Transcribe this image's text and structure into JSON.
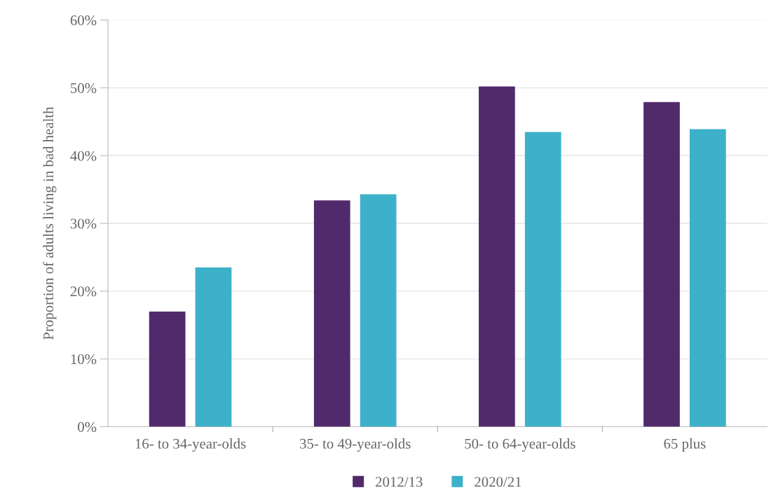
{
  "chart_data": {
    "type": "bar",
    "ylabel": "Proportion of adults living in bad health",
    "categories": [
      "16- to 34-year-olds",
      "35- to 49-year-olds",
      "50- to 64-year-olds",
      "65 plus"
    ],
    "series": [
      {
        "name": "2012/13",
        "color": "#512a6b",
        "values": [
          17.0,
          33.4,
          50.2,
          47.9
        ]
      },
      {
        "name": "2020/21",
        "color": "#3db1c9",
        "values": [
          23.5,
          34.3,
          43.5,
          43.9
        ]
      }
    ],
    "ylim": [
      0,
      60
    ],
    "yticks": [
      {
        "value": 0,
        "label": "0%"
      },
      {
        "value": 10,
        "label": "10%"
      },
      {
        "value": 20,
        "label": "20%"
      },
      {
        "value": 30,
        "label": "30%"
      },
      {
        "value": 40,
        "label": "40%"
      },
      {
        "value": 50,
        "label": "50%"
      },
      {
        "value": 60,
        "label": "60%"
      }
    ],
    "grid": "y",
    "legend": "bottom"
  }
}
